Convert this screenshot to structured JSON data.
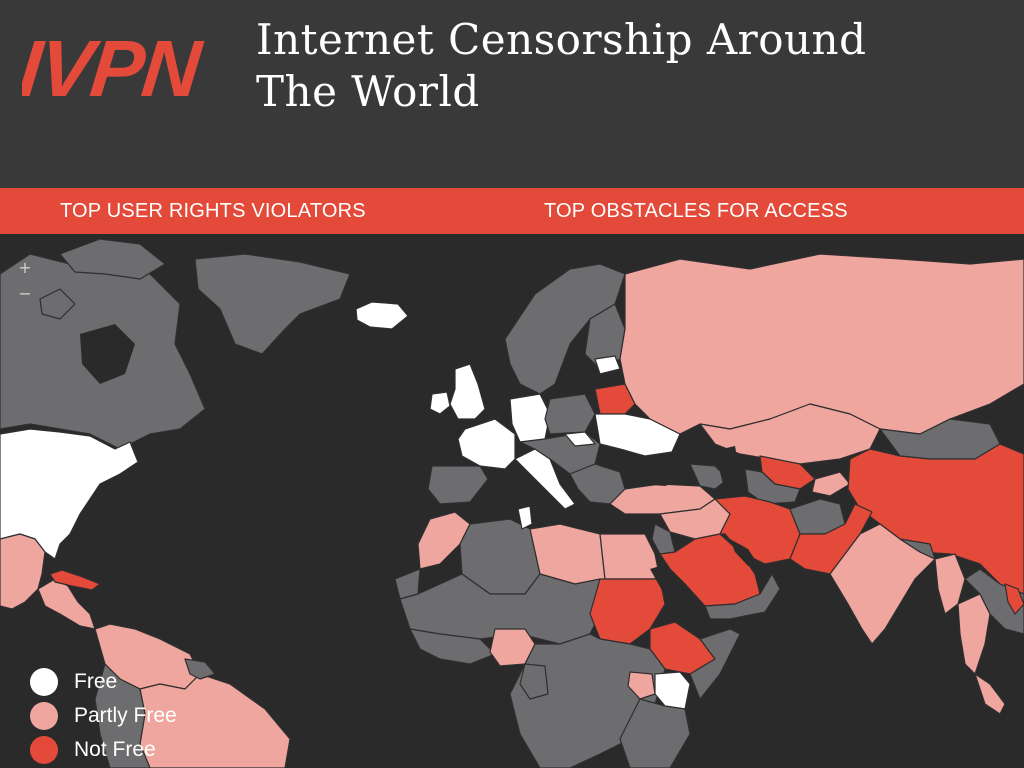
{
  "header": {
    "logo_text": "IVPN",
    "title_line1": "Internet Censorship Around",
    "title_line2": "The World"
  },
  "tabs": [
    {
      "label": "TOP USER RIGHTS VIOLATORS"
    },
    {
      "label": "TOP OBSTACLES FOR ACCESS"
    }
  ],
  "map": {
    "zoom_in_label": "+",
    "zoom_out_label": "−",
    "colors": {
      "ocean": "#2b2a2b",
      "no_data": "#6d6c6e",
      "free": "#ffffff",
      "partly_free": "#eea69e",
      "not_free": "#e34a3a",
      "border": "#2f2e30"
    }
  },
  "legend": [
    {
      "label": "Free",
      "color": "#ffffff"
    },
    {
      "label": "Partly Free",
      "color": "#eea69e"
    },
    {
      "label": "Not Free",
      "color": "#e34a3a"
    }
  ],
  "brand": {
    "accent": "#e34a3a",
    "background": "#3a393a"
  }
}
